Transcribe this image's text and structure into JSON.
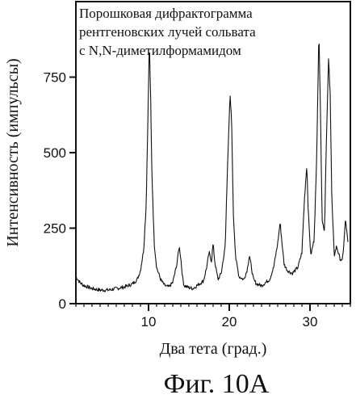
{
  "chart_data": {
    "type": "line",
    "title_lines": [
      "Порошковая дифрактограмма",
      "рентгеновских лучей сольвата",
      "с N,N-диметилформамидом"
    ],
    "xlabel": "Два тета (град.)",
    "ylabel": "Интенсивность (импульсы)",
    "caption": "Фиг. 10A",
    "xlim": [
      1,
      35
    ],
    "ylim": [
      0,
      1000
    ],
    "x_ticks": [
      10,
      20,
      30
    ],
    "y_ticks": [
      0,
      250,
      500,
      750
    ],
    "grid": false,
    "legend": "none",
    "line_color": "#111111",
    "series": [
      {
        "x": [
          1.0,
          1.5,
          2.0,
          3.0,
          4.0,
          5.0,
          6.0,
          7.0,
          8.0,
          8.6,
          9.0,
          9.4,
          9.7,
          9.9,
          10.1,
          10.25,
          10.4,
          10.7,
          11.0,
          11.5,
          12.0,
          12.5,
          13.0,
          13.5,
          13.8,
          14.0,
          14.2,
          14.4,
          14.8,
          15.5,
          16.0,
          16.8,
          17.2,
          17.5,
          17.8,
          18.0,
          18.2,
          18.6,
          19.0,
          19.5,
          19.8,
          20.1,
          20.3,
          20.5,
          20.8,
          21.2,
          21.8,
          22.2,
          22.5,
          22.8,
          23.0,
          23.4,
          24.0,
          24.5,
          25.0,
          25.5,
          26.0,
          26.3,
          26.5,
          26.8,
          27.2,
          27.8,
          28.5,
          29.0,
          29.3,
          29.6,
          29.8,
          30.1,
          30.5,
          30.8,
          31.1,
          31.3,
          31.5,
          31.8,
          32.0,
          32.3,
          32.5,
          32.7,
          33.0,
          33.3,
          33.7,
          34.0,
          34.2,
          34.4,
          34.7
        ],
        "y": [
          90,
          70,
          60,
          50,
          45,
          45,
          50,
          55,
          65,
          80,
          110,
          180,
          320,
          580,
          870,
          700,
          450,
          200,
          120,
          80,
          60,
          55,
          70,
          130,
          190,
          150,
          90,
          60,
          55,
          50,
          60,
          75,
          120,
          170,
          140,
          200,
          140,
          80,
          100,
          190,
          470,
          690,
          600,
          300,
          150,
          90,
          80,
          110,
          160,
          110,
          80,
          65,
          60,
          70,
          80,
          120,
          200,
          270,
          210,
          130,
          110,
          100,
          120,
          170,
          340,
          460,
          300,
          160,
          210,
          450,
          900,
          640,
          280,
          240,
          500,
          810,
          700,
          350,
          160,
          190,
          150,
          140,
          200,
          280,
          200
        ]
      }
    ]
  }
}
